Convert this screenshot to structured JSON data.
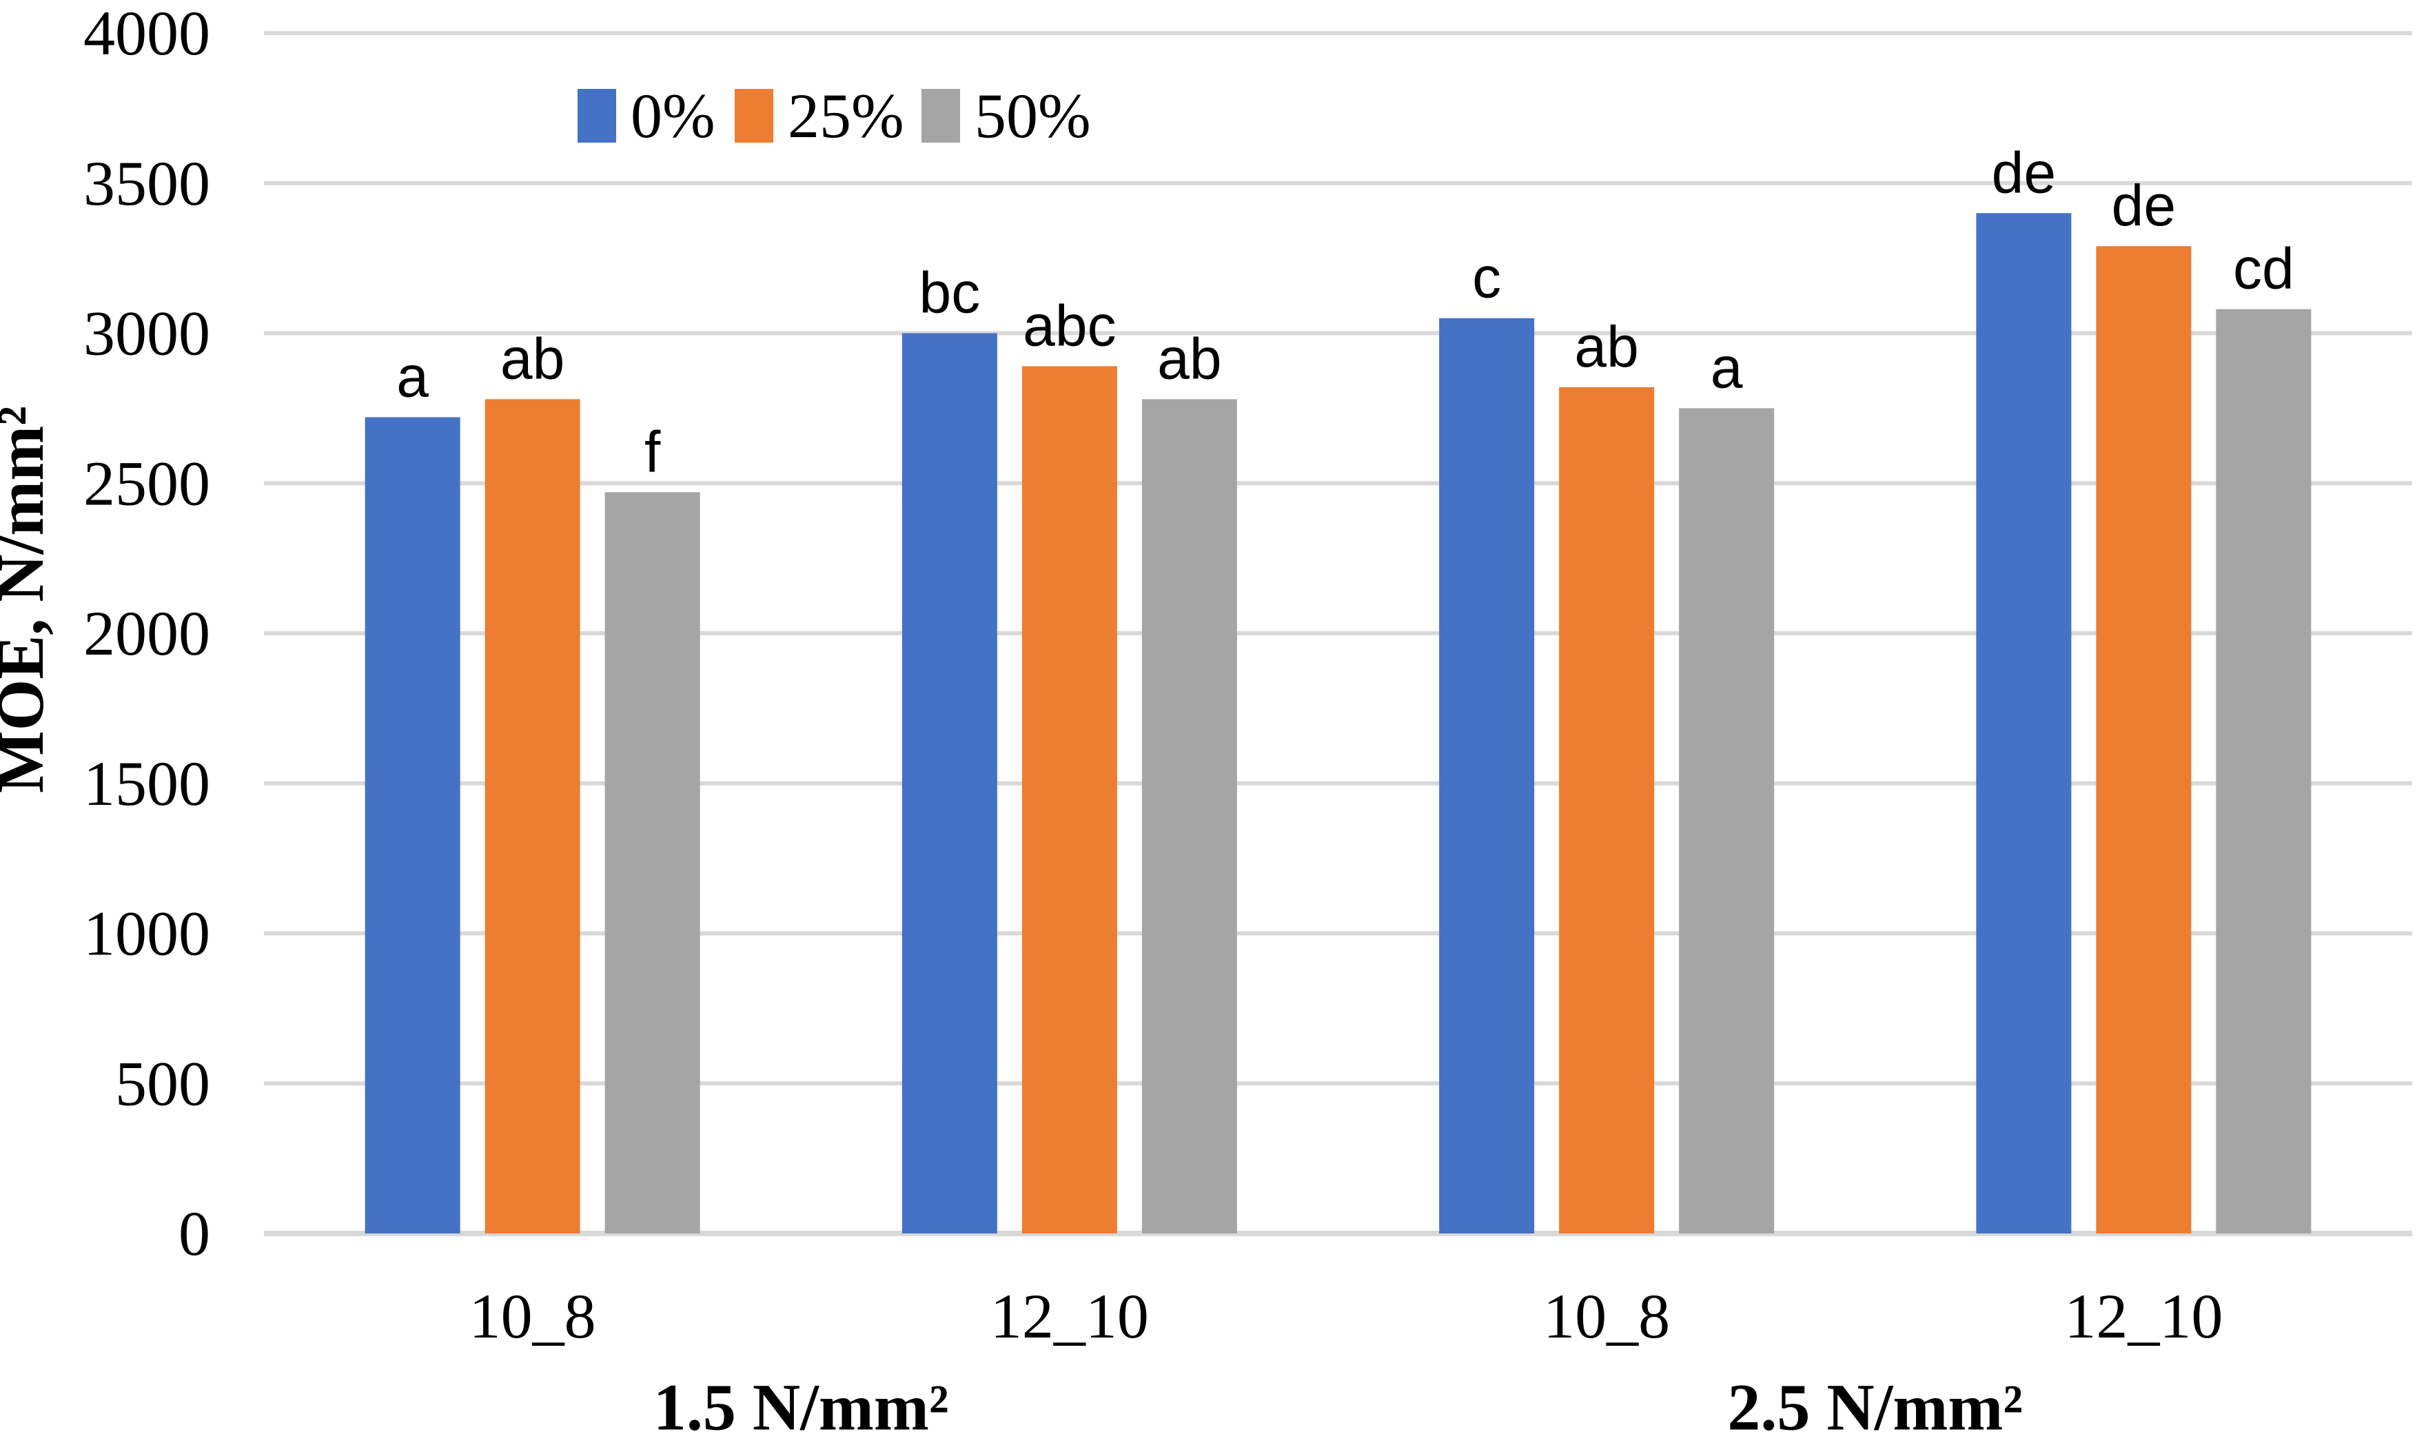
{
  "chart_data": {
    "type": "bar",
    "title": "",
    "xlabel": "",
    "ylabel": "MOE, N/mm²",
    "ylim": [
      0,
      4000
    ],
    "yticks": [
      0,
      500,
      1000,
      1500,
      2000,
      2500,
      3000,
      3500,
      4000
    ],
    "grid": true,
    "legend_position": "top",
    "categories": [
      "10_8",
      "12_10",
      "10_8",
      "12_10"
    ],
    "group_labels": [
      "1.5 N/mm²",
      "2.5 N/mm²"
    ],
    "series": [
      {
        "name": "0%",
        "color": "#4472C4",
        "values": [
          2720,
          3000,
          3050,
          3400
        ],
        "letters": [
          "a",
          "bc",
          "c",
          "de"
        ]
      },
      {
        "name": "25%",
        "color": "#ED7D31",
        "values": [
          2780,
          2890,
          2820,
          3290
        ],
        "letters": [
          "ab",
          "abc",
          "ab",
          "de"
        ]
      },
      {
        "name": "50%",
        "color": "#A5A5A5",
        "values": [
          2470,
          2780,
          2750,
          3080
        ],
        "letters": [
          "f",
          "ab",
          "a",
          "cd"
        ]
      }
    ],
    "colors": {
      "gridline": "#D9D9D9",
      "axis_line": "#D9D9D9",
      "text": "#000000",
      "background": "#FFFFFF"
    }
  }
}
